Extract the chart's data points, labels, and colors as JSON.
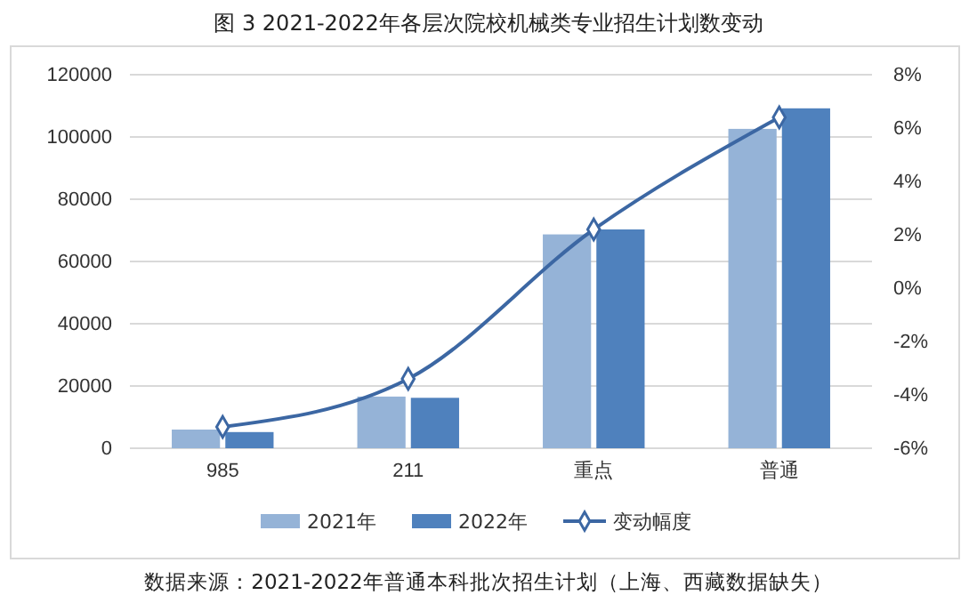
{
  "chart_data": {
    "type": "bar",
    "title": "图 3 2021-2022年各层次院校机械类专业招生计划数变动",
    "categories": [
      "985",
      "211",
      "重点",
      "普通"
    ],
    "series": [
      {
        "name": "2021年",
        "color": "#95b3d7",
        "values": [
          6000,
          16600,
          68700,
          102600
        ]
      },
      {
        "name": "2022年",
        "color": "#4f81bd",
        "values": [
          5200,
          16200,
          70300,
          109200
        ]
      },
      {
        "name": "变动幅度",
        "type": "line",
        "axis": "y2",
        "color": "#3c67a3",
        "marker": "diamond",
        "values": [
          -5.2,
          -3.4,
          2.2,
          6.4
        ]
      }
    ],
    "ylim": [
      0,
      120000
    ],
    "yticks": [
      0,
      20000,
      40000,
      60000,
      80000,
      100000,
      120000
    ],
    "y2lim": [
      -6,
      8
    ],
    "y2ticks": [
      {
        "value": -6,
        "label": "-6%"
      },
      {
        "value": -4,
        "label": "-4%"
      },
      {
        "value": -2,
        "label": "-2%"
      },
      {
        "value": 0,
        "label": "0%"
      },
      {
        "value": 2,
        "label": "2%"
      },
      {
        "value": 4,
        "label": "4%"
      },
      {
        "value": 6,
        "label": "6%"
      },
      {
        "value": 8,
        "label": "8%"
      }
    ],
    "grid": "y",
    "legend": "bottom",
    "annotations": [
      "数据来源：2021-2022年普通本科批次招生计划（上海、西藏数据缺失）"
    ]
  }
}
